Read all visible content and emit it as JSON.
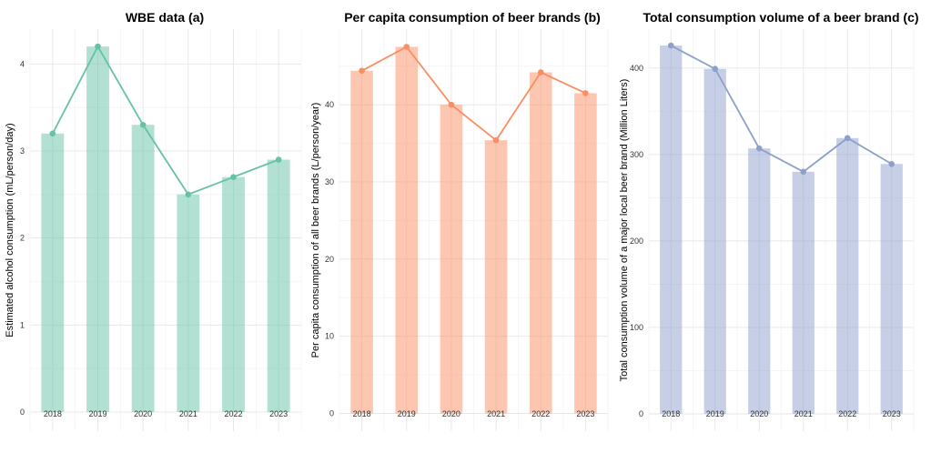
{
  "chart_data": [
    {
      "type": "bar",
      "title": "WBE data (a)",
      "xlabel": "",
      "ylabel": "Estimated alcohol consumption (mL/person/day)",
      "categories": [
        "2018",
        "2019",
        "2020",
        "2021",
        "2022",
        "2023"
      ],
      "values": [
        3.2,
        4.2,
        3.3,
        2.5,
        2.7,
        2.9
      ],
      "line_values": [
        3.2,
        4.2,
        3.3,
        2.5,
        2.7,
        2.9
      ],
      "ylim": [
        -0.22,
        4.4
      ],
      "yticks": [
        0,
        1,
        2,
        3,
        4
      ],
      "ytick_labels": [
        "0",
        "1",
        "2",
        "3",
        "4"
      ],
      "bar_color": "#66c2a5",
      "line_color": "#66c2a5",
      "grid": true,
      "legend": "none"
    },
    {
      "type": "bar",
      "title": "Per capita consumption of beer brands (b)",
      "xlabel": "",
      "ylabel": "Per capita consumption of all beer brands (L/person/year)",
      "categories": [
        "2018",
        "2019",
        "2020",
        "2021",
        "2022",
        "2023"
      ],
      "values": [
        44.4,
        47.5,
        40.0,
        35.4,
        44.2,
        41.5
      ],
      "line_values": [
        44.4,
        47.5,
        40.0,
        35.4,
        44.2,
        41.5
      ],
      "ylim": [
        -2.3,
        49.8
      ],
      "yticks": [
        0,
        10,
        20,
        30,
        40
      ],
      "ytick_labels": [
        "0",
        "10",
        "20",
        "30",
        "40"
      ],
      "bar_color": "#fc8d62",
      "line_color": "#fc8d62",
      "grid": true,
      "legend": "none"
    },
    {
      "type": "bar",
      "title": "Total consumption volume of a beer brand (c)",
      "xlabel": "",
      "ylabel": "Total consumption volume of a major local beer brand (Million Liters)",
      "categories": [
        "2018",
        "2019",
        "2020",
        "2021",
        "2022",
        "2023"
      ],
      "values": [
        426,
        399,
        307,
        280,
        319,
        289
      ],
      "line_values": [
        426,
        399,
        307,
        280,
        319,
        289
      ],
      "ylim": [
        -20,
        445
      ],
      "yticks": [
        0,
        100,
        200,
        300,
        400
      ],
      "ytick_labels": [
        "0",
        "100",
        "200",
        "300",
        "400"
      ],
      "bar_color": "#8da0cb",
      "line_color": "#8da0cb",
      "grid": true,
      "legend": "none"
    }
  ]
}
